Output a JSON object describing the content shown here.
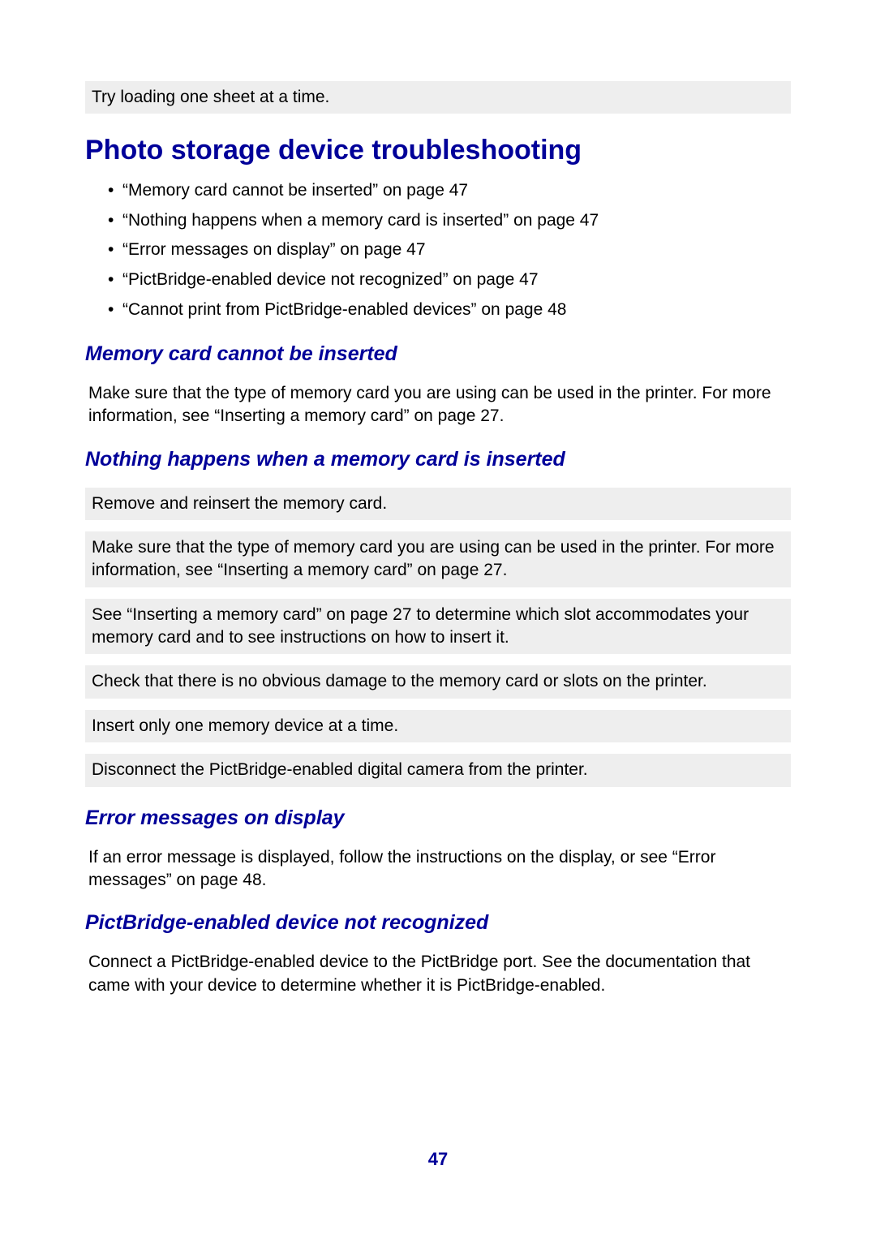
{
  "colors": {
    "heading": "#000099",
    "text": "#000000",
    "block_bg": "#eeeeee",
    "page_bg": "#ffffff"
  },
  "top_block": "Try loading one sheet at a time.",
  "h1": "Photo storage device troubleshooting",
  "toc": [
    "“Memory card cannot be inserted” on page 47",
    "“Nothing happens when a memory card is inserted” on page 47",
    "“Error messages on display” on page 47",
    "“PictBridge-enabled device not recognized” on page 47",
    "“Cannot print from PictBridge-enabled devices” on page 48"
  ],
  "sections": {
    "s1": {
      "title": "Memory card cannot be inserted",
      "body": "Make sure that the type of memory card you are using can be used in the printer. For more information, see “Inserting a memory card” on page 27."
    },
    "s2": {
      "title": "Nothing happens when a memory card is inserted",
      "blocks": [
        "Remove and reinsert the memory card.",
        "Make sure that the type of memory card you are using can be used in the printer. For more information, see “Inserting a memory card” on page 27.",
        "See “Inserting a memory card” on page 27 to determine which slot accommodates your memory card and to see instructions on how to insert it.",
        "Check that there is no obvious damage to the memory card or slots on the printer.",
        "Insert only one memory device at a time.",
        "Disconnect the PictBridge-enabled digital camera from the printer."
      ]
    },
    "s3": {
      "title": "Error messages on display",
      "body": "If an error message is displayed, follow the instructions on the display, or see “Error messages” on page 48."
    },
    "s4": {
      "title": "PictBridge-enabled device not recognized",
      "body": "Connect a PictBridge-enabled device to the PictBridge port. See the documentation that came with your device to determine whether it is PictBridge-enabled."
    }
  },
  "page_number": "47"
}
